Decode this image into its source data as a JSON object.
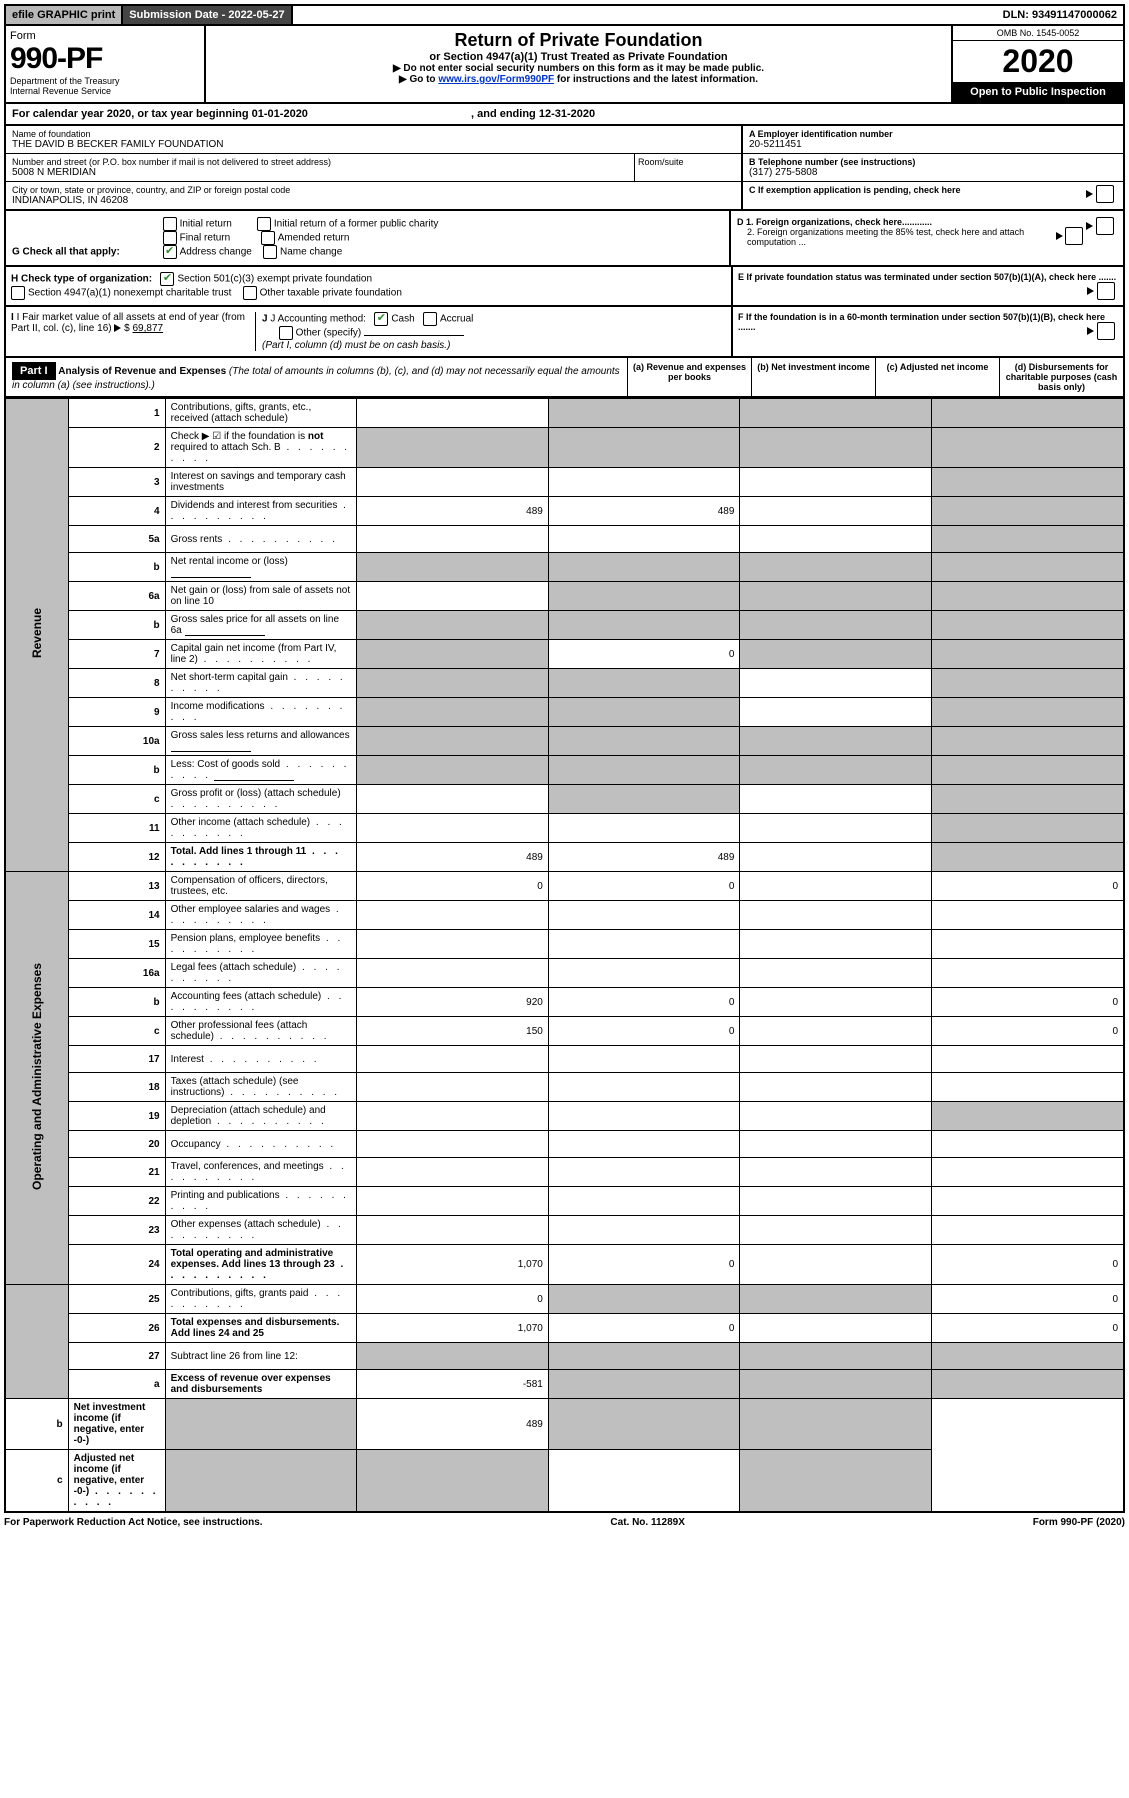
{
  "topbar": {
    "efile": "efile GRAPHIC print",
    "subdate_label": "Submission Date - ",
    "subdate": "2022-05-27",
    "dln_label": "DLN: ",
    "dln": "93491147000062"
  },
  "header": {
    "form_label": "Form",
    "form_no": "990-PF",
    "dept": "Department of the Treasury\nInternal Revenue Service",
    "title": "Return of Private Foundation",
    "subtitle": "or Section 4947(a)(1) Trust Treated as Private Foundation",
    "note1": "▶ Do not enter social security numbers on this form as it may be made public.",
    "note2_pre": "▶ Go to ",
    "note2_link": "www.irs.gov/Form990PF",
    "note2_post": " for instructions and the latest information.",
    "omb": "OMB No. 1545-0052",
    "year": "2020",
    "open": "Open to Public Inspection"
  },
  "calendar": {
    "text1": "For calendar year 2020, or tax year beginning ",
    "begin": "01-01-2020",
    "text2": ", and ending ",
    "end": "12-31-2020"
  },
  "ident": {
    "name_label": "Name of foundation",
    "name": "THE DAVID B BECKER FAMILY FOUNDATION",
    "addr_label": "Number and street (or P.O. box number if mail is not delivered to street address)",
    "addr": "5008 N MERIDIAN",
    "room_label": "Room/suite",
    "city_label": "City or town, state or province, country, and ZIP or foreign postal code",
    "city": "INDIANAPOLIS, IN  46208",
    "ein_label": "A Employer identification number",
    "ein": "20-5211451",
    "phone_label": "B Telephone number (see instructions)",
    "phone": "(317) 275-5808",
    "c_label": "C If exemption application is pending, check here",
    "d1": "D 1. Foreign organizations, check here............",
    "d2": "2. Foreign organizations meeting the 85% test, check here and attach computation ...",
    "e": "E  If private foundation status was terminated under section 507(b)(1)(A), check here .......",
    "f": "F  If the foundation is in a 60-month termination under section 507(b)(1)(B), check here ......."
  },
  "g": {
    "label": "G Check all that apply:",
    "opts": [
      "Initial return",
      "Final return",
      "Address change",
      "Initial return of a former public charity",
      "Amended return",
      "Name change"
    ]
  },
  "h": {
    "label": "H Check type of organization:",
    "opt1": "Section 501(c)(3) exempt private foundation",
    "opt2": "Section 4947(a)(1) nonexempt charitable trust",
    "opt3": "Other taxable private foundation"
  },
  "i": {
    "label": "I Fair market value of all assets at end of year (from Part II, col. (c), line 16)",
    "value": "69,877"
  },
  "j": {
    "label": "J Accounting method:",
    "cash": "Cash",
    "accrual": "Accrual",
    "other": "Other (specify)",
    "note": "(Part I, column (d) must be on cash basis.)"
  },
  "part1": {
    "label": "Part I",
    "title": "Analysis of Revenue and Expenses",
    "italic": " (The total of amounts in columns (b), (c), and (d) may not necessarily equal the amounts in column (a) (see instructions).)",
    "col_a": "(a)   Revenue and expenses per books",
    "col_b": "(b)   Net investment income",
    "col_c": "(c)   Adjusted net income",
    "col_d": "(d)  Disbursements for charitable purposes (cash basis only)"
  },
  "side": {
    "revenue": "Revenue",
    "opex": "Operating and Administrative Expenses"
  },
  "rows": [
    {
      "n": "1",
      "t": "Contributions, gifts, grants, etc., received (attach schedule)",
      "a": "",
      "b": "g",
      "c": "g",
      "d": "g"
    },
    {
      "n": "2",
      "t": "Check ▶ ☑ if the foundation is not required to attach Sch. B",
      "dots": true,
      "a": "g",
      "b": "g",
      "c": "g",
      "d": "g",
      "bold_not": true
    },
    {
      "n": "3",
      "t": "Interest on savings and temporary cash investments",
      "a": "",
      "b": "",
      "c": "",
      "d": "g"
    },
    {
      "n": "4",
      "t": "Dividends and interest from securities",
      "dots": true,
      "a": "489",
      "b": "489",
      "c": "",
      "d": "g"
    },
    {
      "n": "5a",
      "t": "Gross rents",
      "dots": true,
      "a": "",
      "b": "",
      "c": "",
      "d": "g"
    },
    {
      "n": "b",
      "t": "Net rental income or (loss)",
      "sub": true,
      "a": "g",
      "b": "g",
      "c": "g",
      "d": "g"
    },
    {
      "n": "6a",
      "t": "Net gain or (loss) from sale of assets not on line 10",
      "a": "",
      "b": "g",
      "c": "g",
      "d": "g"
    },
    {
      "n": "b",
      "t": "Gross sales price for all assets on line 6a",
      "sub": true,
      "a": "g",
      "b": "g",
      "c": "g",
      "d": "g"
    },
    {
      "n": "7",
      "t": "Capital gain net income (from Part IV, line 2)",
      "dots": true,
      "a": "g",
      "b": "0",
      "c": "g",
      "d": "g"
    },
    {
      "n": "8",
      "t": "Net short-term capital gain",
      "dots": true,
      "a": "g",
      "b": "g",
      "c": "",
      "d": "g"
    },
    {
      "n": "9",
      "t": "Income modifications",
      "dots": true,
      "a": "g",
      "b": "g",
      "c": "",
      "d": "g"
    },
    {
      "n": "10a",
      "t": "Gross sales less returns and allowances",
      "sub": true,
      "a": "g",
      "b": "g",
      "c": "g",
      "d": "g"
    },
    {
      "n": "b",
      "t": "Less: Cost of goods sold",
      "dots": true,
      "sub": true,
      "a": "g",
      "b": "g",
      "c": "g",
      "d": "g"
    },
    {
      "n": "c",
      "t": "Gross profit or (loss) (attach schedule)",
      "dots": true,
      "a": "",
      "b": "g",
      "c": "",
      "d": "g"
    },
    {
      "n": "11",
      "t": "Other income (attach schedule)",
      "dots": true,
      "a": "",
      "b": "",
      "c": "",
      "d": "g"
    },
    {
      "n": "12",
      "t": "Total. Add lines 1 through 11",
      "dots": true,
      "bold": true,
      "a": "489",
      "b": "489",
      "c": "",
      "d": "g"
    },
    {
      "n": "13",
      "t": "Compensation of officers, directors, trustees, etc.",
      "a": "0",
      "b": "0",
      "c": "",
      "d": "0"
    },
    {
      "n": "14",
      "t": "Other employee salaries and wages",
      "dots": true,
      "a": "",
      "b": "",
      "c": "",
      "d": ""
    },
    {
      "n": "15",
      "t": "Pension plans, employee benefits",
      "dots": true,
      "a": "",
      "b": "",
      "c": "",
      "d": ""
    },
    {
      "n": "16a",
      "t": "Legal fees (attach schedule)",
      "dots": true,
      "a": "",
      "b": "",
      "c": "",
      "d": ""
    },
    {
      "n": "b",
      "t": "Accounting fees (attach schedule)",
      "dots": true,
      "a": "920",
      "b": "0",
      "c": "",
      "d": "0"
    },
    {
      "n": "c",
      "t": "Other professional fees (attach schedule)",
      "dots": true,
      "a": "150",
      "b": "0",
      "c": "",
      "d": "0"
    },
    {
      "n": "17",
      "t": "Interest",
      "dots": true,
      "a": "",
      "b": "",
      "c": "",
      "d": ""
    },
    {
      "n": "18",
      "t": "Taxes (attach schedule) (see instructions)",
      "dots": true,
      "a": "",
      "b": "",
      "c": "",
      "d": ""
    },
    {
      "n": "19",
      "t": "Depreciation (attach schedule) and depletion",
      "dots": true,
      "a": "",
      "b": "",
      "c": "",
      "d": "g"
    },
    {
      "n": "20",
      "t": "Occupancy",
      "dots": true,
      "a": "",
      "b": "",
      "c": "",
      "d": ""
    },
    {
      "n": "21",
      "t": "Travel, conferences, and meetings",
      "dots": true,
      "a": "",
      "b": "",
      "c": "",
      "d": ""
    },
    {
      "n": "22",
      "t": "Printing and publications",
      "dots": true,
      "a": "",
      "b": "",
      "c": "",
      "d": ""
    },
    {
      "n": "23",
      "t": "Other expenses (attach schedule)",
      "dots": true,
      "a": "",
      "b": "",
      "c": "",
      "d": ""
    },
    {
      "n": "24",
      "t": "Total operating and administrative expenses. Add lines 13 through 23",
      "dots": true,
      "bold": true,
      "a": "1,070",
      "b": "0",
      "c": "",
      "d": "0"
    },
    {
      "n": "25",
      "t": "Contributions, gifts, grants paid",
      "dots": true,
      "a": "0",
      "b": "g",
      "c": "g",
      "d": "0"
    },
    {
      "n": "26",
      "t": "Total expenses and disbursements. Add lines 24 and 25",
      "bold": true,
      "a": "1,070",
      "b": "0",
      "c": "",
      "d": "0"
    },
    {
      "n": "27",
      "t": "Subtract line 26 from line 12:",
      "a": "g",
      "b": "g",
      "c": "g",
      "d": "g"
    },
    {
      "n": "a",
      "t": "Excess of revenue over expenses and disbursements",
      "bold": true,
      "a": "-581",
      "b": "g",
      "c": "g",
      "d": "g"
    },
    {
      "n": "b",
      "t": "Net investment income (if negative, enter -0-)",
      "bold": true,
      "a": "g",
      "b": "489",
      "c": "g",
      "d": "g"
    },
    {
      "n": "c",
      "t": "Adjusted net income (if negative, enter -0-)",
      "dots": true,
      "bold": true,
      "a": "g",
      "b": "g",
      "c": "",
      "d": "g"
    }
  ],
  "footer": {
    "left": "For Paperwork Reduction Act Notice, see instructions.",
    "mid": "Cat. No. 11289X",
    "right": "Form 990-PF (2020)"
  }
}
